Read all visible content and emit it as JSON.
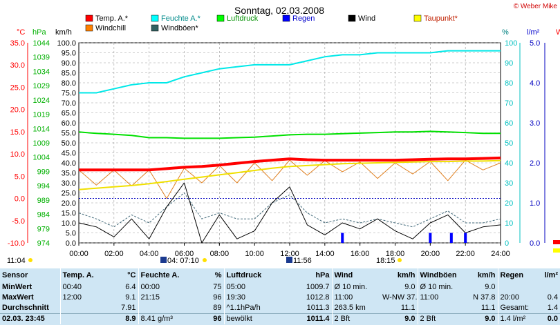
{
  "title": "Sonntag, 02.03.2008",
  "copyright": "© Weber Mike",
  "axes": {
    "temp": {
      "unit": "°C",
      "min": -10,
      "max": 35,
      "ticks": [
        "35.0",
        "30.0",
        "25.0",
        "20.0",
        "15.0",
        "10.0",
        "5.0",
        "0.0",
        "-5.0",
        "-10.0"
      ],
      "color": "#ff0000"
    },
    "pressure": {
      "unit": "hPa",
      "min": 974,
      "max": 1044,
      "ticks": [
        "1044",
        "1039",
        "1034",
        "1029",
        "1024",
        "1019",
        "1014",
        "1009",
        "1004",
        "999",
        "994",
        "989",
        "984",
        "979",
        "974"
      ],
      "color": "#00b000"
    },
    "wind": {
      "unit": "km/h",
      "min": 0,
      "max": 100,
      "ticks": [
        "100.0",
        "95.0",
        "90.0",
        "85.0",
        "80.0",
        "75.0",
        "70.0",
        "65.0",
        "60.0",
        "55.0",
        "50.0",
        "45.0",
        "40.0",
        "35.0",
        "30.0",
        "25.0",
        "20.0",
        "15.0",
        "10.0",
        "5.0",
        "0.0"
      ],
      "color": "#000000"
    },
    "humidity": {
      "unit": "%",
      "min": 0,
      "max": 100,
      "ticks": [
        "100",
        "90",
        "80",
        "70",
        "60",
        "50",
        "40",
        "30",
        "20",
        "10",
        "0"
      ],
      "color": "#00c8c8"
    },
    "rain": {
      "unit": "l/m²",
      "min": 0,
      "max": 5,
      "ticks": [
        "5.0",
        "4.0",
        "3.0",
        "2.0",
        "1.0",
        "0.0"
      ],
      "color": "#0000cc"
    },
    "time_ticks": [
      "00:00",
      "02:00",
      "04:00",
      "06:00",
      "08:00",
      "10:00",
      "12:00",
      "14:00",
      "16:00",
      "18:00",
      "20:00",
      "22:00",
      "24:00"
    ],
    "extra_axis_label": "W"
  },
  "legend": [
    {
      "label": "Temp. A.*",
      "color": "#ff0000"
    },
    {
      "label": "Feuchte A.*",
      "color": "#00ffff"
    },
    {
      "label": "Luftdruck",
      "color": "#00ff00"
    },
    {
      "label": "Regen",
      "color": "#0000ff"
    },
    {
      "label": "Wind",
      "color": "#000000"
    },
    {
      "label": "Taupunkt*",
      "color": "#ffff00"
    },
    {
      "label": "Windchill",
      "color": "#ff8000"
    },
    {
      "label": "Windböen*",
      "color": "#306060"
    }
  ],
  "sun_labels": {
    "left": "11:04",
    "mid": "04:  07:10",
    "noon": "11:56",
    "right": "18:15"
  },
  "chart_data": {
    "type": "line",
    "x_hours": [
      0,
      1,
      2,
      3,
      4,
      5,
      6,
      7,
      8,
      9,
      10,
      11,
      12,
      13,
      14,
      15,
      16,
      17,
      18,
      19,
      20,
      21,
      22,
      23,
      24
    ],
    "series": [
      {
        "name": "Temp. A.*",
        "axis": "temp",
        "values": [
          6.4,
          6.4,
          6.4,
          6.4,
          6.4,
          6.7,
          7.0,
          7.2,
          7.5,
          7.9,
          8.3,
          8.6,
          8.9,
          8.7,
          8.6,
          8.6,
          8.6,
          8.6,
          8.6,
          8.7,
          8.8,
          8.9,
          8.9,
          9.0,
          9.1
        ]
      },
      {
        "name": "Feuchte A.*",
        "axis": "humidity",
        "values": [
          75,
          75,
          77,
          79,
          80,
          80,
          83,
          85,
          87,
          88,
          89,
          89,
          89,
          91,
          93,
          94,
          94,
          95,
          95,
          95,
          95,
          96,
          96,
          96,
          96
        ]
      },
      {
        "name": "Luftdruck",
        "axis": "pressure",
        "values": [
          1012.8,
          1012.3,
          1012.0,
          1011.6,
          1010.8,
          1010.8,
          1010.6,
          1010.6,
          1010.6,
          1010.8,
          1011.0,
          1011.4,
          1011.8,
          1012.0,
          1012.0,
          1012.2,
          1012.4,
          1012.6,
          1012.8,
          1012.8,
          1013.0,
          1012.8,
          1012.6,
          1012.3,
          1012.3
        ]
      },
      {
        "name": "Taupunkt*",
        "axis": "temp",
        "values": [
          2.0,
          2.3,
          2.6,
          2.9,
          3.3,
          3.8,
          4.3,
          4.8,
          5.3,
          5.8,
          6.3,
          6.8,
          7.2,
          7.4,
          7.6,
          7.8,
          7.9,
          8.0,
          8.1,
          8.2,
          8.3,
          8.3,
          8.4,
          8.4,
          8.5
        ]
      },
      {
        "name": "Windchill",
        "axis": "temp",
        "values": [
          6.4,
          3.0,
          6.4,
          2.8,
          6.4,
          0.0,
          6.8,
          3.5,
          7.4,
          3.5,
          8.0,
          4.0,
          8.6,
          5.2,
          8.5,
          6.0,
          8.2,
          4.5,
          8.0,
          5.5,
          8.3,
          4.0,
          8.6,
          6.4,
          8.0
        ]
      },
      {
        "name": "Wind",
        "axis": "wind",
        "values": [
          10,
          8,
          3,
          12,
          2,
          18,
          30,
          0,
          14,
          2,
          6,
          20,
          28,
          9,
          4,
          10,
          7,
          12,
          6,
          2,
          10,
          14,
          5,
          8,
          9
        ]
      },
      {
        "name": "Windböen*",
        "axis": "wind",
        "values": [
          15,
          12,
          8,
          14,
          10,
          18,
          25,
          12,
          15,
          12,
          12,
          20,
          24,
          15,
          10,
          12,
          10,
          12,
          10,
          8,
          12,
          16,
          10,
          10,
          12
        ]
      }
    ],
    "rain_bars_hours": [
      15.0,
      20.0,
      21.2,
      22.0
    ],
    "rain_bar_value": 0.25,
    "xlim": [
      0,
      24
    ]
  },
  "stats": {
    "headers": {
      "sensor": "Sensor",
      "temp": "Temp. A.",
      "temp_unit": "°C",
      "hum": "Feuchte A.",
      "hum_unit": "%",
      "press": "Luftdruck",
      "press_unit": "hPa",
      "wind": "Wind",
      "wind_unit": "km/h",
      "gust": "Windböen",
      "gust_unit": "km/h",
      "rain": "Regen",
      "rain_unit": "l/m²"
    },
    "rows": [
      {
        "label": "MinWert",
        "temp_t": "00:40",
        "temp_v": "6.4",
        "hum_t": "00:00",
        "hum_v": "75",
        "press_t": "05:00",
        "press_v": "1009.7",
        "wind_t": "Ø 10 min.",
        "wind_v": "9.0",
        "gust_t": "Ø 10 min.",
        "gust_v": "9.0",
        "rain_t": "",
        "rain_v": ""
      },
      {
        "label": "MaxWert",
        "temp_t": "12:00",
        "temp_v": "9.1",
        "hum_t": "21:15",
        "hum_v": "96",
        "press_t": "19:30",
        "press_v": "1012.8",
        "wind_t": "11:00",
        "wind_m": "W-NW 37.8",
        "wind_v": "",
        "gust_t": "11:00",
        "gust_m": "N 37.8",
        "gust_v": "",
        "rain_t": "20:00",
        "rain_v": "0.4"
      },
      {
        "label": "Durchschnitt",
        "temp_t": "",
        "temp_v": "7.91",
        "hum_t": "",
        "hum_v": "89",
        "press_t": "^1.1hPa/h",
        "press_v": "1011.3",
        "wind_t": "263.5 km",
        "wind_v": "11.1",
        "gust_t": "",
        "gust_v": "11.1",
        "rain_t": "Gesamt:",
        "rain_v": "1.4"
      },
      {
        "label": "02.03. 23:45",
        "temp_t": "",
        "temp_v": "8.9",
        "hum_t": "8.41 g/m³",
        "hum_v": "96",
        "press_t": "bewölkt",
        "press_v": "1011.4",
        "wind_t": "2 Bft",
        "wind_v": "9.0",
        "gust_t": "2 Bft",
        "gust_v": "9.0",
        "rain_t": "1.4 l/m²",
        "rain_v": "0.0"
      }
    ]
  }
}
